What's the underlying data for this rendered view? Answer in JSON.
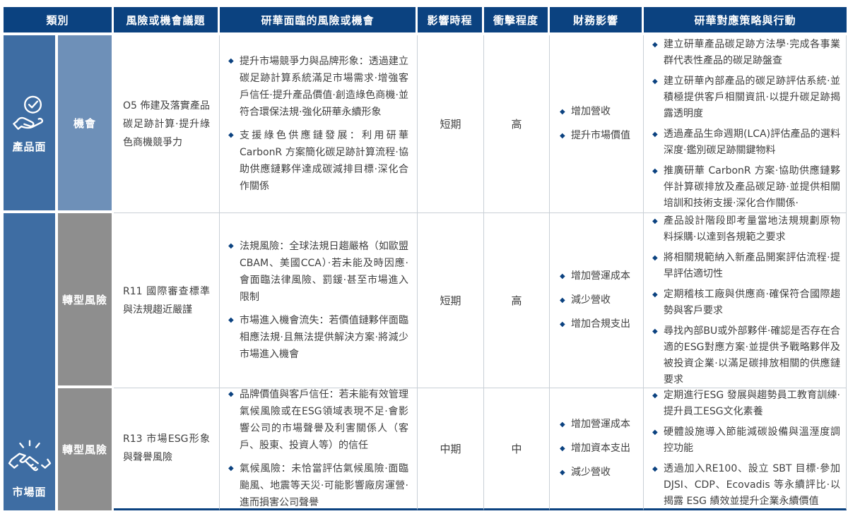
{
  "accent_colors": {
    "header_navy": "#0b4280",
    "category_blue": "#3e6da3",
    "opportunity_blue": "#6e90b8",
    "risk_gray": "#8e8e8e"
  },
  "table": {
    "headers": {
      "category": "類別",
      "topic": "風險或機會議題",
      "risks": "研華面臨的風險或機會",
      "timeline": "影響時程",
      "impact": "衝擊程度",
      "financial": "財務影響",
      "strategies": "研華對應策略與行動"
    },
    "categories": [
      {
        "label": "產品面",
        "icon": "hand-check-icon",
        "rowspan": 1
      },
      {
        "label": "市場面",
        "icon": "handshake-icon",
        "rowspan": 2
      }
    ],
    "rows": [
      {
        "subcategory": "機會",
        "topic": "O5 佈建及落實產品碳足跡計算·提升綠色商機競爭力",
        "risks": [
          "提升市場競爭力與品牌形象：透過建立碳足跡計算系統滿足市場需求·增強客戶信任·提升產品價值·創造綠色商機·並符合環保法規·強化研華永續形象",
          "支援綠色供應鏈發展：利用研華 CarbonR 方案簡化碳足跡計算流程·協助供應鏈夥伴達成碳減排目標·深化合作關係"
        ],
        "timeline": "短期",
        "impact": "高",
        "financial": [
          "增加營收",
          "提升市場價值"
        ],
        "strategies": [
          "建立研華產品碳足跡方法學·完成各事業群代表性產品的碳足跡盤查",
          "建立研華內部產品的碳足跡評估系統·並積極提供客戶相關資訊·以提升碳足跡揭露透明度",
          "透過產品生命週期(LCA)評估產品的選料深度·鑑別碳足跡關鍵物料",
          "推廣研華 CarbonR 方案·協助供應鏈夥伴計算碳排放及產品碳足跡·並提供相關培訓和技術支援·深化合作關係·"
        ]
      },
      {
        "subcategory": "轉型風險",
        "topic": "R11 國際審查標準與法規趨近嚴謹",
        "risks": [
          "法規風險：全球法規日趨嚴格（如歐盟CBAM、美國CCA）·若未能及時因應·會面臨法律風險、罰鍰·甚至市場進入限制",
          "市場進入機會流失：若價值鏈夥伴面臨相應法規·且無法提供解決方案·將減少市場進入機會"
        ],
        "timeline": "短期",
        "impact": "高",
        "financial": [
          "增加營運成本",
          "減少營收",
          "增加合規支出"
        ],
        "strategies": [
          "產品設計階段即考量當地法規規劃原物料採購·以達到各規範之要求",
          "將相關規範納入新產品開案評估流程·提早評估適切性",
          "定期稽核工廠與供應商·確保符合國際趨勢與客戶要求",
          "尋找內部BU或外部夥伴·確認是否存在合適的ESG對應方案·並提供予戰略夥伴及被投資企業·以滿足碳排放相關的供應鏈要求"
        ]
      },
      {
        "subcategory": "轉型風險",
        "topic": "R13 市場ESG形象與聲譽風險",
        "risks": [
          "品牌價值與客戶信任：若未能有效管理氣候風險或在ESG領域表現不足·會影響公司的市場聲譽及利害關係人（客戶、股東、投資人等）的信任",
          "氣候風險：未恰當評估氣候風險·面臨颱風、地震等天災·可能影響廠房運營·進而損害公司聲譽"
        ],
        "timeline": "中期",
        "impact": "中",
        "financial": [
          "增加營運成本",
          "增加資本支出",
          "減少營收"
        ],
        "strategies": [
          "定期進行ESG 發展與趨勢員工教育訓練·提升員工ESG文化素養",
          "硬體設施導入節能減碳設備與溫溼度調控功能",
          "透過加入RE100、設立 SBT 目標·參加 DJSI、CDP、Ecovadis 等永續評比·以揭露 ESG 績效並提升企業永續價值"
        ]
      }
    ]
  }
}
